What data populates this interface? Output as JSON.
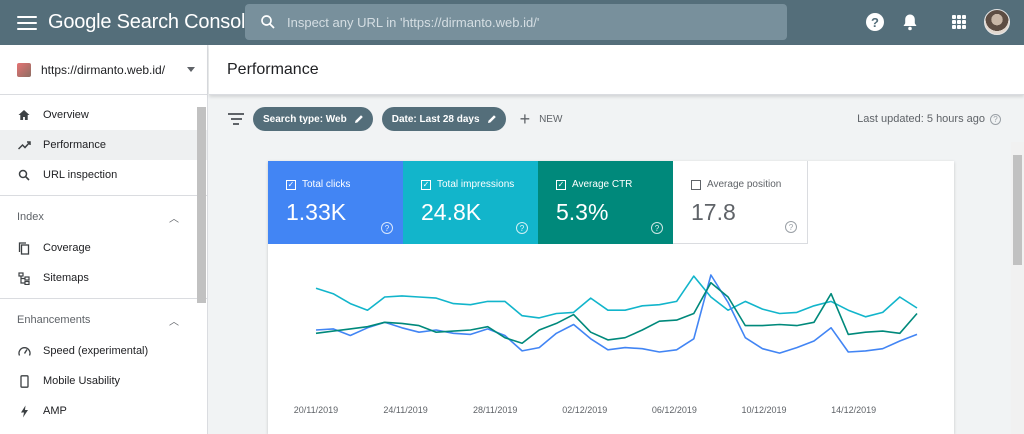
{
  "app": {
    "title": "Google Search Console",
    "search_placeholder": "Inspect any URL in 'https://dirmanto.web.id/'"
  },
  "sidebar": {
    "property": "https://dirmanto.web.id/",
    "groups": [
      {
        "items": [
          {
            "label": "Overview",
            "icon": "home-icon"
          },
          {
            "label": "Performance",
            "icon": "trending-icon",
            "active": true
          },
          {
            "label": "URL inspection",
            "icon": "search-icon"
          }
        ]
      },
      {
        "title": "Index",
        "items": [
          {
            "label": "Coverage",
            "icon": "copy-icon"
          },
          {
            "label": "Sitemaps",
            "icon": "sitemap-icon"
          }
        ]
      },
      {
        "title": "Enhancements",
        "items": [
          {
            "label": "Speed (experimental)",
            "icon": "speedometer-icon"
          },
          {
            "label": "Mobile Usability",
            "icon": "phone-icon"
          },
          {
            "label": "AMP",
            "icon": "bolt-icon"
          }
        ]
      }
    ]
  },
  "page": {
    "title": "Performance"
  },
  "filters": {
    "chips": [
      "Search type: Web",
      "Date: Last 28 days"
    ],
    "new_label": "NEW",
    "last_updated": "Last updated: 5 hours ago"
  },
  "metrics": [
    {
      "label": "Total clicks",
      "value": "1.33K",
      "checked": true,
      "color": "#4285f4"
    },
    {
      "label": "Total impressions",
      "value": "24.8K",
      "checked": true,
      "color": "#12b5cb"
    },
    {
      "label": "Average CTR",
      "value": "5.3%",
      "checked": true,
      "color": "#00897b"
    },
    {
      "label": "Average position",
      "value": "17.8",
      "checked": false,
      "color": "#ffffff"
    }
  ],
  "chart_data": {
    "type": "line",
    "x_tick_labels": [
      "20/11/2019",
      "24/11/2019",
      "28/11/2019",
      "02/12/2019",
      "06/12/2019",
      "10/12/2019",
      "14/12/2019"
    ],
    "series": [
      {
        "name": "Total impressions",
        "color": "#12b5cb",
        "values": [
          78,
          73,
          64,
          58,
          70,
          71,
          70,
          69,
          64,
          63,
          66,
          66,
          53,
          51,
          55,
          56,
          69,
          58,
          58,
          62,
          63,
          66,
          89,
          70,
          58,
          66,
          59,
          55,
          56,
          62,
          66,
          58,
          52,
          56,
          70,
          60
        ]
      },
      {
        "name": "Total clicks",
        "color": "#4285f4",
        "values": [
          40,
          41,
          35,
          42,
          47,
          42,
          38,
          40,
          37,
          36,
          41,
          35,
          21,
          24,
          37,
          45,
          32,
          22,
          24,
          23,
          20,
          22,
          32,
          90,
          65,
          33,
          23,
          19,
          24,
          30,
          42,
          20,
          21,
          23,
          30,
          36
        ]
      },
      {
        "name": "Average CTR",
        "color": "#00897b",
        "values": [
          37,
          39,
          41,
          43,
          47,
          46,
          44,
          38,
          39,
          40,
          43,
          33,
          28,
          40,
          46,
          54,
          38,
          31,
          33,
          40,
          48,
          49,
          55,
          83,
          70,
          44,
          44,
          45,
          44,
          47,
          73,
          36,
          38,
          39,
          37,
          55
        ]
      }
    ]
  }
}
